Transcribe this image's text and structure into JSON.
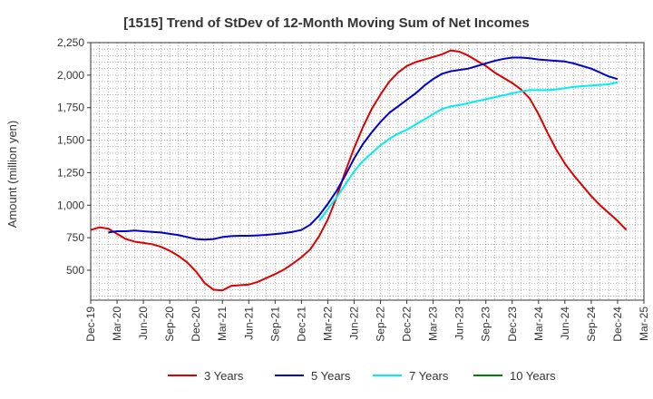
{
  "chart_data": {
    "type": "line",
    "title": "[1515]  Trend of StDev of 12-Month Moving Sum of Net Incomes",
    "ylabel": "Amount (million yen)",
    "xlabel": "",
    "ylim": [
      270,
      2250
    ],
    "yticks": [
      500,
      750,
      1000,
      1250,
      1500,
      1750,
      2000,
      2250
    ],
    "ytick_labels": [
      "500",
      "750",
      "1,000",
      "1,250",
      "1,500",
      "1,750",
      "2,000",
      "2,250"
    ],
    "x_range": [
      "2019-12",
      "2025-03"
    ],
    "xtick_labels": [
      "Dec-19",
      "Mar-20",
      "Jun-20",
      "Sep-20",
      "Dec-20",
      "Mar-21",
      "Jun-21",
      "Sep-21",
      "Dec-21",
      "Mar-22",
      "Jun-22",
      "Sep-22",
      "Dec-22",
      "Mar-23",
      "Jun-23",
      "Sep-23",
      "Dec-23",
      "Mar-24",
      "Jun-24",
      "Sep-24",
      "Dec-24",
      "Mar-25"
    ],
    "grid": true,
    "legend_position": "bottom",
    "series": [
      {
        "name": "3 Years",
        "color": "#dd0000",
        "points": [
          [
            "2019-12",
            810
          ],
          [
            "2020-01",
            830
          ],
          [
            "2020-02",
            820
          ],
          [
            "2020-03",
            780
          ],
          [
            "2020-04",
            740
          ],
          [
            "2020-05",
            720
          ],
          [
            "2020-06",
            710
          ],
          [
            "2020-07",
            700
          ],
          [
            "2020-08",
            680
          ],
          [
            "2020-09",
            650
          ],
          [
            "2020-10",
            610
          ],
          [
            "2020-11",
            560
          ],
          [
            "2020-12",
            490
          ],
          [
            "2021-01",
            400
          ],
          [
            "2021-02",
            350
          ],
          [
            "2021-03",
            345
          ],
          [
            "2021-04",
            380
          ],
          [
            "2021-05",
            385
          ],
          [
            "2021-06",
            390
          ],
          [
            "2021-07",
            410
          ],
          [
            "2021-08",
            440
          ],
          [
            "2021-09",
            470
          ],
          [
            "2021-10",
            505
          ],
          [
            "2021-11",
            550
          ],
          [
            "2021-12",
            600
          ],
          [
            "2022-01",
            660
          ],
          [
            "2022-02",
            760
          ],
          [
            "2022-03",
            890
          ],
          [
            "2022-04",
            1060
          ],
          [
            "2022-05",
            1260
          ],
          [
            "2022-06",
            1440
          ],
          [
            "2022-07",
            1600
          ],
          [
            "2022-08",
            1740
          ],
          [
            "2022-09",
            1850
          ],
          [
            "2022-10",
            1950
          ],
          [
            "2022-11",
            2020
          ],
          [
            "2022-12",
            2070
          ],
          [
            "2023-01",
            2100
          ],
          [
            "2023-02",
            2120
          ],
          [
            "2023-03",
            2140
          ],
          [
            "2023-04",
            2160
          ],
          [
            "2023-05",
            2190
          ],
          [
            "2023-06",
            2180
          ],
          [
            "2023-07",
            2150
          ],
          [
            "2023-08",
            2110
          ],
          [
            "2023-09",
            2070
          ],
          [
            "2023-10",
            2020
          ],
          [
            "2023-11",
            1980
          ],
          [
            "2023-12",
            1940
          ],
          [
            "2024-01",
            1890
          ],
          [
            "2024-02",
            1820
          ],
          [
            "2024-03",
            1700
          ],
          [
            "2024-04",
            1560
          ],
          [
            "2024-05",
            1430
          ],
          [
            "2024-06",
            1320
          ],
          [
            "2024-07",
            1230
          ],
          [
            "2024-08",
            1150
          ],
          [
            "2024-09",
            1070
          ],
          [
            "2024-10",
            1000
          ],
          [
            "2024-11",
            940
          ],
          [
            "2024-12",
            880
          ],
          [
            "2025-01",
            810
          ]
        ]
      },
      {
        "name": "5 Years",
        "color": "#0000cc",
        "points": [
          [
            "2020-02",
            790
          ],
          [
            "2020-03",
            800
          ],
          [
            "2020-04",
            800
          ],
          [
            "2020-05",
            805
          ],
          [
            "2020-06",
            800
          ],
          [
            "2020-07",
            795
          ],
          [
            "2020-08",
            790
          ],
          [
            "2020-09",
            780
          ],
          [
            "2020-10",
            770
          ],
          [
            "2020-11",
            755
          ],
          [
            "2020-12",
            740
          ],
          [
            "2021-01",
            735
          ],
          [
            "2021-02",
            740
          ],
          [
            "2021-03",
            755
          ],
          [
            "2021-04",
            762
          ],
          [
            "2021-05",
            765
          ],
          [
            "2021-06",
            765
          ],
          [
            "2021-07",
            768
          ],
          [
            "2021-08",
            772
          ],
          [
            "2021-09",
            778
          ],
          [
            "2021-10",
            785
          ],
          [
            "2021-11",
            795
          ],
          [
            "2021-12",
            810
          ],
          [
            "2022-01",
            850
          ],
          [
            "2022-02",
            920
          ],
          [
            "2022-03",
            1010
          ],
          [
            "2022-04",
            1110
          ],
          [
            "2022-05",
            1230
          ],
          [
            "2022-06",
            1360
          ],
          [
            "2022-07",
            1470
          ],
          [
            "2022-08",
            1560
          ],
          [
            "2022-09",
            1640
          ],
          [
            "2022-10",
            1710
          ],
          [
            "2022-11",
            1760
          ],
          [
            "2022-12",
            1810
          ],
          [
            "2023-01",
            1860
          ],
          [
            "2023-02",
            1920
          ],
          [
            "2023-03",
            1970
          ],
          [
            "2023-04",
            2010
          ],
          [
            "2023-05",
            2030
          ],
          [
            "2023-06",
            2040
          ],
          [
            "2023-07",
            2050
          ],
          [
            "2023-08",
            2070
          ],
          [
            "2023-09",
            2090
          ],
          [
            "2023-10",
            2110
          ],
          [
            "2023-11",
            2125
          ],
          [
            "2023-12",
            2135
          ],
          [
            "2024-01",
            2135
          ],
          [
            "2024-02",
            2130
          ],
          [
            "2024-03",
            2120
          ],
          [
            "2024-04",
            2115
          ],
          [
            "2024-05",
            2110
          ],
          [
            "2024-06",
            2105
          ],
          [
            "2024-07",
            2090
          ],
          [
            "2024-08",
            2070
          ],
          [
            "2024-09",
            2050
          ],
          [
            "2024-10",
            2020
          ],
          [
            "2024-11",
            1990
          ],
          [
            "2024-12",
            1970
          ]
        ]
      },
      {
        "name": "7 Years",
        "color": "#00eeee",
        "points": [
          [
            "2022-02",
            880
          ],
          [
            "2022-03",
            970
          ],
          [
            "2022-04",
            1060
          ],
          [
            "2022-05",
            1160
          ],
          [
            "2022-06",
            1260
          ],
          [
            "2022-07",
            1340
          ],
          [
            "2022-08",
            1400
          ],
          [
            "2022-09",
            1460
          ],
          [
            "2022-10",
            1510
          ],
          [
            "2022-11",
            1550
          ],
          [
            "2022-12",
            1580
          ],
          [
            "2023-01",
            1620
          ],
          [
            "2023-02",
            1660
          ],
          [
            "2023-03",
            1700
          ],
          [
            "2023-04",
            1740
          ],
          [
            "2023-05",
            1760
          ],
          [
            "2023-06",
            1770
          ],
          [
            "2023-07",
            1785
          ],
          [
            "2023-08",
            1800
          ],
          [
            "2023-09",
            1815
          ],
          [
            "2023-10",
            1830
          ],
          [
            "2023-11",
            1845
          ],
          [
            "2023-12",
            1860
          ],
          [
            "2024-01",
            1875
          ],
          [
            "2024-02",
            1885
          ],
          [
            "2024-03",
            1885
          ],
          [
            "2024-04",
            1885
          ],
          [
            "2024-05",
            1890
          ],
          [
            "2024-06",
            1900
          ],
          [
            "2024-07",
            1910
          ],
          [
            "2024-08",
            1915
          ],
          [
            "2024-09",
            1920
          ],
          [
            "2024-10",
            1925
          ],
          [
            "2024-11",
            1930
          ],
          [
            "2024-12",
            1945
          ]
        ]
      },
      {
        "name": "10 Years",
        "color": "#008000",
        "points": []
      }
    ]
  }
}
